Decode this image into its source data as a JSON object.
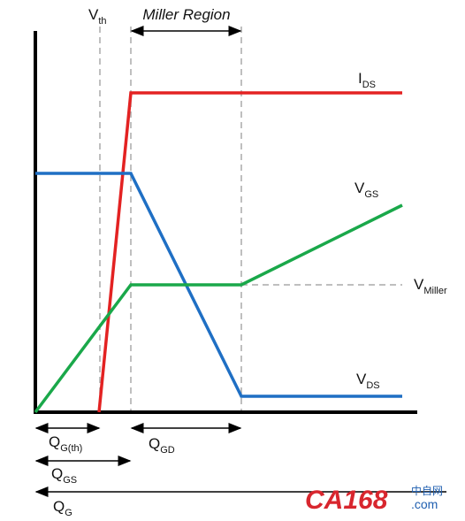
{
  "region_label": "Miller Region",
  "labels": {
    "vth": {
      "main": "V",
      "sub": "th"
    },
    "ids": {
      "main": "I",
      "sub": "DS"
    },
    "vgs": {
      "main": "V",
      "sub": "GS"
    },
    "vmiller": {
      "main": "V",
      "sub": "Miller"
    },
    "vds": {
      "main": "V",
      "sub": "DS"
    },
    "qgth": {
      "main": "Q",
      "sub": "G(th)"
    },
    "qgd": {
      "main": "Q",
      "sub": "GD"
    },
    "qgs": {
      "main": "Q",
      "sub": "GS"
    },
    "qg": {
      "main": "Q",
      "sub": "G"
    }
  },
  "watermark": {
    "brand": "CA168",
    "cn": "中自网",
    "domain": ".com"
  }
}
